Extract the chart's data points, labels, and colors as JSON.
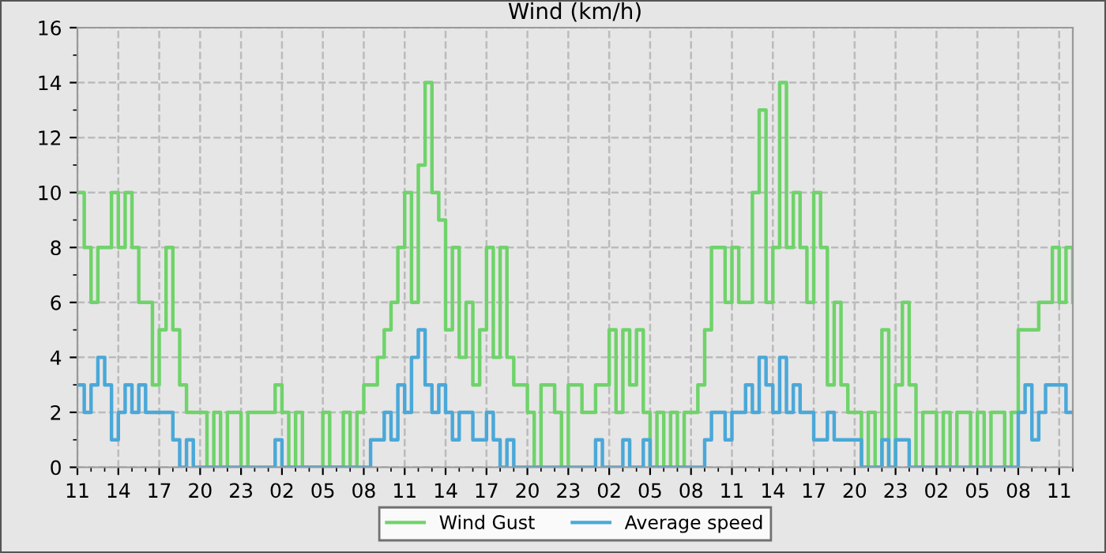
{
  "chart_data": {
    "type": "step",
    "title": "Wind (km/h)",
    "ylim": [
      0,
      16
    ],
    "categories": [
      "11",
      null,
      null,
      null,
      null,
      null,
      "14",
      null,
      null,
      null,
      null,
      null,
      "17",
      null,
      null,
      null,
      null,
      null,
      "20",
      null,
      null,
      null,
      null,
      null,
      "23",
      null,
      null,
      null,
      null,
      null,
      "02",
      null,
      null,
      null,
      null,
      null,
      "05",
      null,
      null,
      null,
      null,
      null,
      "08",
      null,
      null,
      null,
      null,
      null,
      "11",
      null,
      null,
      null,
      null,
      null,
      "14",
      null,
      null,
      null,
      null,
      null,
      "17",
      null,
      null,
      null,
      null,
      null,
      "20",
      null,
      null,
      null,
      null,
      null,
      "23",
      null,
      null,
      null,
      null,
      null,
      "02",
      null,
      null,
      null,
      null,
      null,
      "05",
      null,
      null,
      null,
      null,
      null,
      "08",
      null,
      null,
      null,
      null,
      null,
      "11",
      null,
      null,
      null,
      null,
      null,
      "14",
      null,
      null,
      null,
      null,
      null,
      "17",
      null,
      null,
      null,
      null,
      null,
      "20",
      null,
      null,
      null,
      null,
      null,
      "23",
      null,
      null,
      null,
      null,
      null,
      "02",
      null,
      null,
      null,
      null,
      null,
      "05",
      null,
      null,
      null,
      null,
      null,
      "08",
      null,
      null,
      null,
      null,
      null,
      "11",
      null,
      null
    ],
    "yticks": [
      0,
      2,
      4,
      6,
      8,
      10,
      12,
      14,
      16
    ],
    "grid": true,
    "legend": "bottom",
    "line_style": "solid",
    "marker": "none",
    "series": [
      {
        "name": "Wind Gust",
        "color": "#6fd36a",
        "values": [
          10,
          8,
          6,
          8,
          8,
          10,
          8,
          10,
          8,
          6,
          6,
          3,
          5,
          8,
          5,
          3,
          2,
          2,
          2,
          0,
          2,
          0,
          2,
          2,
          0,
          2,
          2,
          2,
          2,
          3,
          2,
          0,
          2,
          0,
          0,
          0,
          2,
          0,
          0,
          2,
          0,
          2,
          3,
          3,
          4,
          5,
          6,
          8,
          10,
          6,
          11,
          14,
          10,
          9,
          5,
          8,
          4,
          6,
          3,
          5,
          8,
          4,
          8,
          4,
          3,
          3,
          2,
          0,
          3,
          3,
          2,
          0,
          3,
          3,
          2,
          2,
          3,
          3,
          5,
          2,
          5,
          3,
          5,
          2,
          0,
          2,
          0,
          2,
          0,
          2,
          2,
          3,
          5,
          8,
          8,
          6,
          8,
          6,
          6,
          10,
          13,
          6,
          8,
          14,
          8,
          10,
          8,
          6,
          10,
          8,
          3,
          6,
          3,
          2,
          2,
          0,
          2,
          0,
          5,
          0,
          3,
          6,
          3,
          0,
          2,
          2,
          0,
          2,
          0,
          2,
          2,
          0,
          2,
          0,
          2,
          2,
          0,
          2,
          5,
          5,
          5,
          6,
          6,
          8,
          6,
          8,
          6
        ]
      },
      {
        "name": "Average speed",
        "color": "#4aa8d8",
        "values": [
          3,
          2,
          3,
          4,
          3,
          1,
          2,
          3,
          2,
          3,
          2,
          2,
          2,
          2,
          1,
          0,
          1,
          0,
          0,
          0,
          0,
          0,
          0,
          0,
          0,
          0,
          0,
          0,
          0,
          1,
          0,
          0,
          0,
          0,
          0,
          0,
          0,
          0,
          0,
          0,
          0,
          0,
          0,
          1,
          1,
          2,
          1,
          3,
          2,
          4,
          5,
          3,
          2,
          3,
          2,
          1,
          2,
          2,
          1,
          1,
          2,
          1,
          0,
          1,
          0,
          0,
          0,
          0,
          0,
          0,
          0,
          0,
          0,
          0,
          0,
          0,
          1,
          0,
          0,
          0,
          1,
          0,
          0,
          1,
          0,
          0,
          0,
          0,
          0,
          0,
          0,
          0,
          1,
          2,
          2,
          1,
          2,
          2,
          3,
          2,
          4,
          3,
          2,
          4,
          2,
          3,
          2,
          2,
          1,
          1,
          2,
          1,
          1,
          1,
          1,
          0,
          0,
          0,
          1,
          0,
          1,
          1,
          0,
          0,
          0,
          0,
          0,
          0,
          0,
          0,
          0,
          0,
          0,
          0,
          0,
          0,
          0,
          0,
          2,
          3,
          1,
          2,
          3,
          3,
          3,
          2,
          2
        ]
      }
    ]
  }
}
